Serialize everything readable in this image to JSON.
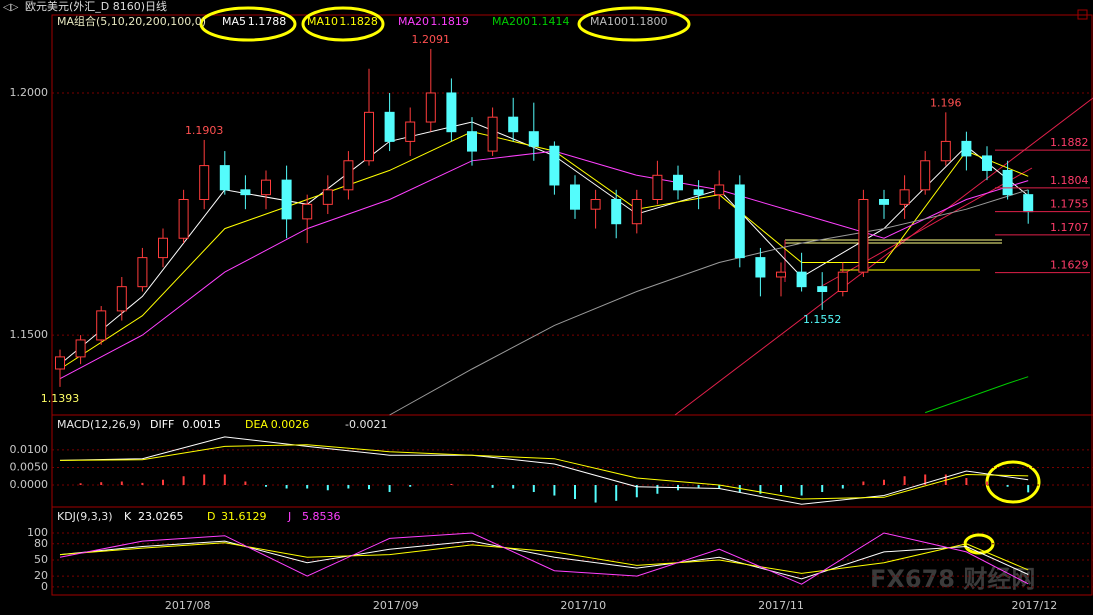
{
  "header": {
    "title": "欧元美元(外汇_D 8160)日线"
  },
  "watermark": "FX678 财经网",
  "x_labels": [
    "2017/08",
    "2017/09",
    "2017/10",
    "2017/11",
    "2017/12"
  ],
  "chart_data": [
    {
      "type": "candlestick",
      "title": "MA组合(5,10,20,200,100,0)",
      "up_color": "#ff3c3c",
      "down_color": "#54fcfc",
      "ylim": [
        1.1335,
        1.2161
      ],
      "yticks": [
        {
          "value": 1.15,
          "label": "1.1500"
        },
        {
          "value": 1.2,
          "label": "1.2000"
        }
      ],
      "open": [
        1.143,
        1.1455,
        1.149,
        1.155,
        1.16,
        1.166,
        1.17,
        1.178,
        1.185,
        1.18,
        1.179,
        1.182,
        1.174,
        1.177,
        1.18,
        1.186,
        1.196,
        1.19,
        1.194,
        1.2,
        1.192,
        1.188,
        1.195,
        1.192,
        1.189,
        1.181,
        1.176,
        1.178,
        1.173,
        1.178,
        1.183,
        1.18,
        1.179,
        1.181,
        1.166,
        1.162,
        1.163,
        1.16,
        1.159,
        1.163,
        1.178,
        1.177,
        1.18,
        1.186,
        1.19,
        1.187,
        1.184,
        1.179
      ],
      "high": [
        1.147,
        1.15,
        1.156,
        1.162,
        1.168,
        1.172,
        1.18,
        1.1903,
        1.188,
        1.183,
        1.184,
        1.185,
        1.179,
        1.183,
        1.188,
        1.205,
        1.2,
        1.197,
        1.2091,
        1.203,
        1.195,
        1.197,
        1.199,
        1.198,
        1.19,
        1.183,
        1.18,
        1.18,
        1.18,
        1.186,
        1.185,
        1.182,
        1.184,
        1.183,
        1.168,
        1.165,
        1.167,
        1.163,
        1.165,
        1.18,
        1.18,
        1.183,
        1.188,
        1.196,
        1.192,
        1.189,
        1.186,
        1.18
      ],
      "low": [
        1.1393,
        1.144,
        1.148,
        1.153,
        1.159,
        1.164,
        1.169,
        1.176,
        1.179,
        1.176,
        1.176,
        1.17,
        1.169,
        1.175,
        1.178,
        1.185,
        1.188,
        1.187,
        1.192,
        1.19,
        1.185,
        1.187,
        1.19,
        1.186,
        1.179,
        1.174,
        1.172,
        1.17,
        1.171,
        1.177,
        1.178,
        1.176,
        1.176,
        1.164,
        1.158,
        1.158,
        1.159,
        1.1552,
        1.158,
        1.162,
        1.174,
        1.174,
        1.179,
        1.185,
        1.184,
        1.182,
        1.178,
        1.173
      ],
      "close": [
        1.1455,
        1.149,
        1.155,
        1.16,
        1.166,
        1.17,
        1.178,
        1.185,
        1.18,
        1.179,
        1.182,
        1.174,
        1.177,
        1.18,
        1.186,
        1.196,
        1.19,
        1.194,
        1.2,
        1.192,
        1.188,
        1.195,
        1.192,
        1.189,
        1.181,
        1.176,
        1.178,
        1.173,
        1.178,
        1.183,
        1.18,
        1.179,
        1.181,
        1.166,
        1.162,
        1.163,
        1.16,
        1.159,
        1.163,
        1.178,
        1.177,
        1.18,
        1.186,
        1.19,
        1.187,
        1.184,
        1.179,
        1.1755
      ],
      "series": [
        {
          "name": "MA5",
          "color": "#ffffff",
          "last_label": "1.1788",
          "x": [
            0,
            4,
            8,
            12,
            16,
            20,
            24,
            28,
            32,
            36,
            40,
            44,
            47
          ],
          "values": [
            1.144,
            1.158,
            1.18,
            1.177,
            1.19,
            1.194,
            1.187,
            1.175,
            1.18,
            1.162,
            1.172,
            1.189,
            1.1788
          ]
        },
        {
          "name": "MA10",
          "color": "#ffff00",
          "last_label": "1.1828",
          "x": [
            0,
            4,
            8,
            12,
            16,
            20,
            24,
            28,
            32,
            36,
            40,
            44,
            47
          ],
          "values": [
            1.143,
            1.154,
            1.172,
            1.178,
            1.184,
            1.192,
            1.188,
            1.176,
            1.179,
            1.165,
            1.165,
            1.188,
            1.1828
          ]
        },
        {
          "name": "MA20",
          "color": "#ff40ff",
          "last_label": "1.1819",
          "x": [
            0,
            4,
            8,
            12,
            16,
            20,
            24,
            28,
            32,
            36,
            40,
            44,
            47
          ],
          "values": [
            1.141,
            1.15,
            1.163,
            1.172,
            1.178,
            1.186,
            1.188,
            1.183,
            1.18,
            1.175,
            1.17,
            1.178,
            1.1819
          ]
        },
        {
          "name": "MA200",
          "color": "#00cc00",
          "last_label": "1.1414",
          "x": [
            42,
            44,
            46,
            47
          ],
          "values": [
            1.134,
            1.137,
            1.14,
            1.1414
          ]
        },
        {
          "name": "MA100",
          "color": "#9a9a9a",
          "last_label": "1.1800",
          "x": [
            16,
            20,
            24,
            28,
            32,
            36,
            40,
            44,
            47
          ],
          "values": [
            1.1335,
            1.143,
            1.152,
            1.159,
            1.165,
            1.169,
            1.172,
            1.176,
            1.18
          ]
        }
      ],
      "annotations": [
        {
          "x": 0,
          "value": 1.1393
        },
        {
          "x": 7,
          "value": 1.1903
        },
        {
          "x": 18,
          "value": 1.2091
        },
        {
          "x": 43,
          "value": 1.196
        },
        {
          "x": 37,
          "value": 1.1552
        }
      ],
      "levels": [
        1.1882,
        1.1804,
        1.1755,
        1.1707,
        1.1629
      ]
    },
    {
      "type": "macd",
      "title": "MACD(12,26,9)",
      "ylim": [
        -0.0057,
        0.0191
      ],
      "yticks": [
        {
          "value": 0.01,
          "label": "0.0100"
        },
        {
          "value": 0.005,
          "label": "0.0050"
        },
        {
          "value": 0,
          "label": "0.0000"
        }
      ],
      "series": [
        {
          "name": "DIFF",
          "color": "#ffffff",
          "x": [
            0,
            4,
            8,
            12,
            16,
            20,
            24,
            28,
            32,
            36,
            40,
            44,
            47
          ],
          "values": [
            0.007,
            0.0075,
            0.0137,
            0.011,
            0.0085,
            0.0085,
            0.006,
            -0.0005,
            -0.001,
            -0.0055,
            -0.003,
            0.004,
            0.0015
          ]
        },
        {
          "name": "DEA",
          "color": "#ffff00",
          "x": [
            0,
            4,
            8,
            12,
            16,
            20,
            24,
            28,
            32,
            36,
            40,
            44,
            47
          ],
          "values": [
            0.007,
            0.0072,
            0.011,
            0.0115,
            0.0095,
            0.0085,
            0.0075,
            0.002,
            0.0,
            -0.004,
            -0.0035,
            0.003,
            0.0026
          ]
        }
      ],
      "histogram": {
        "up_color": "#ff3c3c",
        "down_color": "#54fcfc",
        "values": [
          0.0,
          0.0005,
          0.0008,
          0.001,
          0.0006,
          0.0015,
          0.0025,
          0.003,
          0.003,
          0.001,
          -0.0005,
          -0.001,
          -0.001,
          -0.0015,
          -0.001,
          -0.0012,
          -0.002,
          -0.0005,
          0.0,
          0.0003,
          0.0,
          -0.0008,
          -0.001,
          -0.002,
          -0.003,
          -0.004,
          -0.005,
          -0.0045,
          -0.0035,
          -0.0025,
          -0.0015,
          -0.001,
          -0.001,
          -0.002,
          -0.0025,
          -0.002,
          -0.003,
          -0.002,
          -0.001,
          0.001,
          0.0015,
          0.0025,
          0.003,
          0.003,
          0.002,
          0.001,
          -0.0005,
          -0.0021
        ]
      }
    },
    {
      "type": "kdj",
      "title": "KDJ(9,3,3)",
      "ylim": [
        -15,
        139
      ],
      "yticks": [
        0,
        20,
        50,
        80,
        100
      ],
      "series": [
        {
          "name": "K",
          "color": "#ffffff",
          "x": [
            0,
            4,
            8,
            12,
            16,
            20,
            24,
            28,
            32,
            36,
            40,
            44,
            47
          ],
          "values": [
            60,
            75,
            85,
            45,
            70,
            85,
            55,
            35,
            55,
            15,
            65,
            75,
            23.0265
          ]
        },
        {
          "name": "D",
          "color": "#ffff00",
          "x": [
            0,
            4,
            8,
            12,
            16,
            20,
            24,
            28,
            32,
            36,
            40,
            44,
            47
          ],
          "values": [
            60,
            72,
            82,
            55,
            60,
            78,
            65,
            40,
            50,
            25,
            45,
            80,
            31.6129
          ]
        },
        {
          "name": "J",
          "color": "#ff40ff",
          "x": [
            0,
            4,
            8,
            12,
            16,
            20,
            24,
            28,
            32,
            36,
            40,
            44,
            47
          ],
          "values": [
            55,
            85,
            95,
            20,
            90,
            100,
            30,
            20,
            70,
            5,
            100,
            65,
            5.8536
          ]
        }
      ]
    }
  ]
}
